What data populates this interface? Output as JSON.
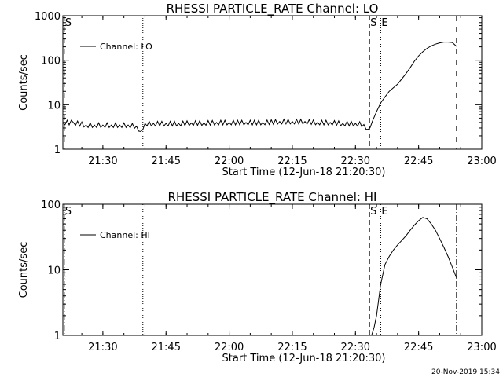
{
  "footer": {
    "timestamp": "20-Nov-2019 15:34"
  },
  "chart_data": [
    {
      "type": "line",
      "title": "RHESSI PARTICLE_RATE Channel: LO",
      "xlabel": "Start Time (12-Jun-18 21:20:30)",
      "ylabel": "Counts/sec",
      "y_scale": "log",
      "ylim": [
        1,
        1000
      ],
      "xlim": [
        "21:20:30",
        "23:00:00"
      ],
      "x_ticks": [
        "21:30",
        "21:45",
        "22:00",
        "22:15",
        "22:30",
        "22:45",
        "23:00"
      ],
      "y_ticks": [
        "1",
        "10",
        "100",
        "1000"
      ],
      "legend": {
        "position": "top-left",
        "entries": [
          "Channel: LO"
        ]
      },
      "markers": [
        {
          "label": "S",
          "x": "21:20:50",
          "style": "dashdot"
        },
        {
          "label": "",
          "x": "21:39:30",
          "style": "dotted"
        },
        {
          "label": "S",
          "x": "22:33:20",
          "style": "dashed"
        },
        {
          "label": "E",
          "x": "22:36:00",
          "style": "dotted"
        },
        {
          "label": "",
          "x": "22:54:00",
          "style": "dashdot"
        }
      ],
      "series": [
        {
          "name": "Channel: LO",
          "x": [
            "21:20:30",
            "21:23",
            "21:26",
            "21:28",
            "21:30",
            "21:32",
            "21:34",
            "21:36",
            "21:38",
            "21:39",
            "21:40",
            "21:42",
            "21:45",
            "21:48",
            "21:51",
            "21:54",
            "21:57",
            "22:00",
            "22:04",
            "22:08",
            "22:12",
            "22:15",
            "22:18",
            "22:21",
            "22:24",
            "22:27",
            "22:30",
            "22:32",
            "22:33",
            "22:34",
            "22:35",
            "22:36",
            "22:37",
            "22:38",
            "22:39",
            "22:40",
            "22:41",
            "22:42",
            "22:43",
            "22:44",
            "22:45",
            "22:46",
            "22:47",
            "22:48",
            "22:49",
            "22:50",
            "22:51",
            "22:52",
            "22:53",
            "22:54"
          ],
          "y": [
            4,
            4,
            3.5,
            3.5,
            3.5,
            3.5,
            3.5,
            3.5,
            3.3,
            2.5,
            3.8,
            3.8,
            3.8,
            3.8,
            3.9,
            3.9,
            4,
            4,
            4,
            4,
            4.2,
            4.2,
            4.2,
            4,
            4,
            3.8,
            3.8,
            3.6,
            2.8,
            4.2,
            7,
            11,
            15,
            20,
            24,
            29,
            38,
            50,
            68,
            95,
            125,
            155,
            185,
            210,
            230,
            245,
            255,
            255,
            250,
            205
          ]
        }
      ]
    },
    {
      "type": "line",
      "title": "RHESSI PARTICLE_RATE Channel: HI",
      "xlabel": "Start Time (12-Jun-18 21:20:30)",
      "ylabel": "Counts/sec",
      "y_scale": "log",
      "ylim": [
        1,
        100
      ],
      "xlim": [
        "21:20:30",
        "23:00:00"
      ],
      "x_ticks": [
        "21:30",
        "21:45",
        "22:00",
        "22:15",
        "22:30",
        "22:45",
        "23:00"
      ],
      "y_ticks": [
        "1",
        "10",
        "100"
      ],
      "legend": {
        "position": "top-left",
        "entries": [
          "Channel: HI"
        ]
      },
      "markers": [
        {
          "label": "S",
          "x": "21:20:50",
          "style": "dashdot"
        },
        {
          "label": "",
          "x": "21:39:30",
          "style": "dotted"
        },
        {
          "label": "S",
          "x": "22:33:20",
          "style": "dashed"
        },
        {
          "label": "E",
          "x": "22:36:00",
          "style": "dotted"
        },
        {
          "label": "",
          "x": "22:54:00",
          "style": "dashdot"
        }
      ],
      "series": [
        {
          "name": "Channel: HI",
          "x": [
            "22:33:50",
            "22:35",
            "22:36",
            "22:37",
            "22:38",
            "22:39",
            "22:40",
            "22:41",
            "22:42",
            "22:43",
            "22:44",
            "22:45",
            "22:46",
            "22:47",
            "22:48",
            "22:49",
            "22:50",
            "22:51",
            "22:52",
            "22:53",
            "22:54"
          ],
          "y": [
            1,
            2,
            6,
            12,
            16,
            20,
            24,
            28,
            33,
            40,
            48,
            56,
            63,
            60,
            50,
            40,
            30,
            22,
            16,
            11,
            7.5
          ]
        }
      ]
    }
  ]
}
